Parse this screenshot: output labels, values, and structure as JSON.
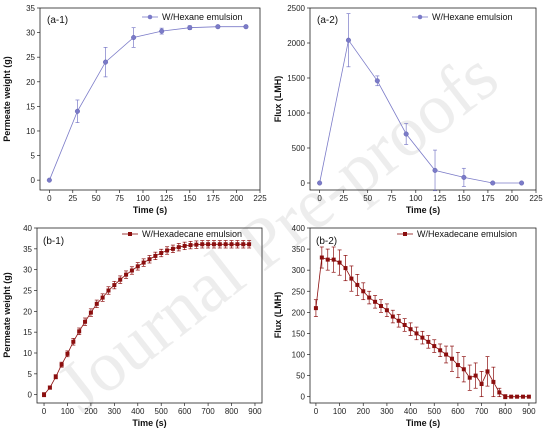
{
  "watermark": "Journal Pre-proofs",
  "chart_data": [
    {
      "type": "line",
      "panel": "(a-1)",
      "xlabel": "Time (s)",
      "ylabel": "Permeate weight (g)",
      "xlim": [
        -10,
        225
      ],
      "ylim": [
        -2,
        35
      ],
      "xticks": [
        0,
        25,
        50,
        75,
        100,
        125,
        150,
        175,
        200,
        225
      ],
      "yticks": [
        0,
        5,
        10,
        15,
        20,
        25,
        30,
        35
      ],
      "legend_position": "top-right",
      "color": "#7b7bc8",
      "marker": "circle",
      "series": [
        {
          "name": "W/Hexane emulsion",
          "x": [
            0,
            30,
            60,
            90,
            120,
            150,
            180,
            210
          ],
          "y": [
            0,
            14,
            24,
            29,
            30.3,
            31,
            31.2,
            31.2
          ],
          "err": [
            0,
            2.3,
            3.0,
            2.0,
            0.6,
            0.4,
            0.3,
            0.3
          ]
        }
      ]
    },
    {
      "type": "line",
      "panel": "(a-2)",
      "xlabel": "Time (s)",
      "ylabel": "Flux (LMH)",
      "xlim": [
        -10,
        225
      ],
      "ylim": [
        -100,
        2500
      ],
      "xticks": [
        0,
        25,
        50,
        75,
        100,
        125,
        150,
        175,
        200,
        225
      ],
      "yticks": [
        0,
        500,
        1000,
        1500,
        2000,
        2500
      ],
      "legend_position": "top-right",
      "color": "#7b7bc8",
      "marker": "circle",
      "series": [
        {
          "name": "W/Hexane emulsion",
          "x": [
            0,
            30,
            60,
            90,
            120,
            150,
            180,
            210
          ],
          "y": [
            0,
            2040,
            1460,
            700,
            180,
            80,
            0,
            0
          ],
          "err": [
            0,
            380,
            70,
            150,
            290,
            130,
            0,
            0
          ]
        }
      ]
    },
    {
      "type": "line",
      "panel": "(b-1)",
      "xlabel": "Time (s)",
      "ylabel": "Permeate weight (g)",
      "xlim": [
        -30,
        930
      ],
      "ylim": [
        -2,
        40
      ],
      "xticks": [
        0,
        100,
        200,
        300,
        400,
        500,
        600,
        700,
        800,
        900
      ],
      "yticks": [
        0,
        5,
        10,
        15,
        20,
        25,
        30,
        35,
        40
      ],
      "legend_position": "top-left",
      "color": "#8b0e0e",
      "marker": "square",
      "series": [
        {
          "name": "W/Hexadecane emulsion",
          "x": [
            0,
            25,
            50,
            75,
            100,
            125,
            150,
            175,
            200,
            225,
            250,
            275,
            300,
            325,
            350,
            375,
            400,
            425,
            450,
            475,
            500,
            525,
            550,
            575,
            600,
            625,
            650,
            675,
            700,
            725,
            750,
            775,
            800,
            825,
            850,
            875
          ],
          "y": [
            0,
            1.7,
            4.3,
            7.2,
            9.8,
            12.7,
            15.2,
            17.5,
            19.7,
            21.8,
            23.3,
            25.0,
            26.3,
            27.6,
            28.8,
            29.8,
            30.8,
            31.7,
            32.5,
            33.3,
            34.0,
            34.6,
            35.0,
            35.4,
            35.7,
            35.9,
            36.0,
            36.1,
            36.1,
            36.1,
            36.1,
            36.1,
            36.1,
            36.1,
            36.1,
            36.1
          ],
          "err": [
            0.5,
            0.4,
            0.5,
            0.6,
            0.7,
            0.8,
            0.8,
            0.9,
            0.9,
            0.9,
            0.9,
            0.9,
            0.9,
            0.9,
            0.9,
            0.9,
            0.9,
            0.9,
            0.9,
            0.9,
            0.9,
            0.9,
            0.9,
            0.9,
            0.9,
            0.9,
            0.9,
            0.9,
            0.9,
            0.9,
            0.9,
            0.9,
            0.9,
            0.9,
            0.9,
            0.9
          ]
        }
      ]
    },
    {
      "type": "line",
      "panel": "(b-2)",
      "xlabel": "Time (s)",
      "ylabel": "Flux (LMH)",
      "xlim": [
        -25,
        930
      ],
      "ylim": [
        -15,
        400
      ],
      "xticks": [
        0,
        100,
        200,
        300,
        400,
        500,
        600,
        700,
        800,
        900
      ],
      "yticks": [
        0,
        50,
        100,
        150,
        200,
        250,
        300,
        350,
        400
      ],
      "legend_position": "top-right",
      "color": "#8b0e0e",
      "marker": "square",
      "series": [
        {
          "name": "W/Hexadecane emulsion",
          "x": [
            0,
            25,
            50,
            75,
            100,
            125,
            150,
            175,
            200,
            225,
            250,
            275,
            300,
            325,
            350,
            375,
            400,
            425,
            450,
            475,
            500,
            525,
            550,
            575,
            600,
            625,
            650,
            675,
            700,
            725,
            750,
            775,
            800,
            825,
            850,
            875,
            900
          ],
          "y": [
            210,
            330,
            325,
            325,
            318,
            305,
            280,
            265,
            250,
            235,
            225,
            215,
            205,
            190,
            180,
            170,
            160,
            150,
            140,
            130,
            120,
            110,
            100,
            90,
            75,
            65,
            45,
            50,
            30,
            60,
            35,
            10,
            0,
            0,
            0,
            0,
            0
          ],
          "err": [
            20,
            25,
            25,
            30,
            30,
            30,
            30,
            25,
            20,
            15,
            15,
            15,
            15,
            15,
            15,
            15,
            15,
            15,
            15,
            15,
            15,
            15,
            20,
            30,
            30,
            30,
            30,
            30,
            30,
            35,
            35,
            10,
            5,
            0,
            0,
            0,
            0
          ]
        }
      ]
    }
  ]
}
